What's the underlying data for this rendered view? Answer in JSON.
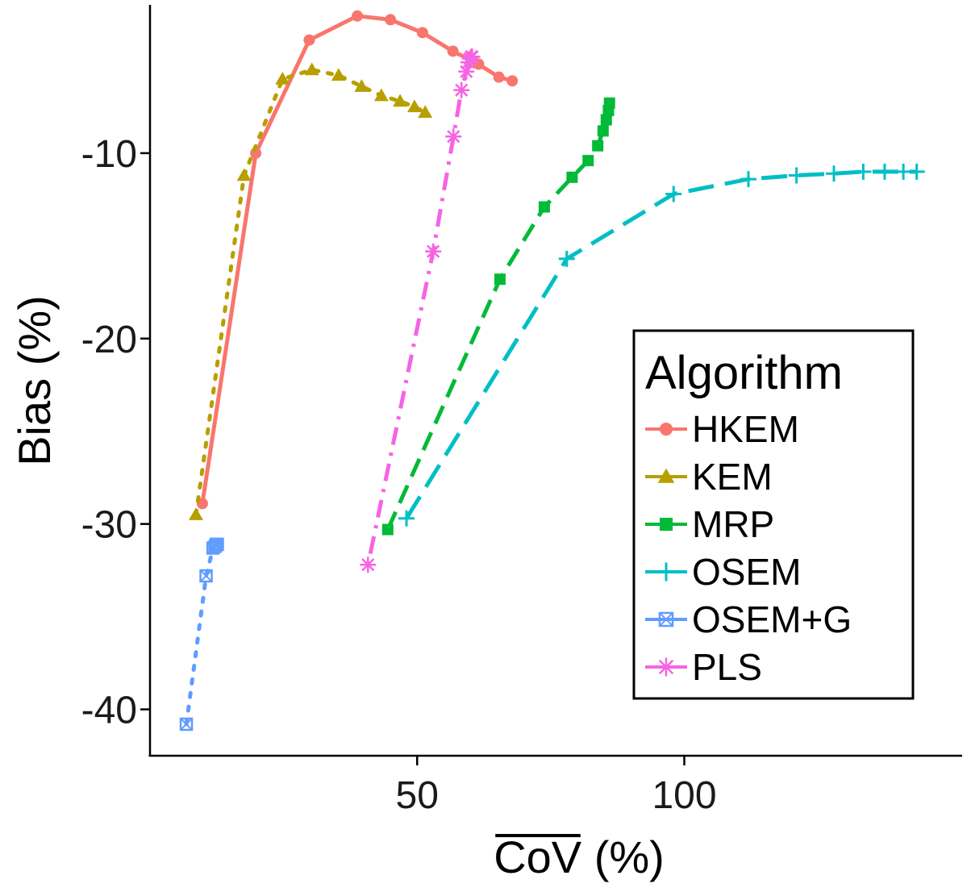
{
  "chart_data": {
    "type": "line",
    "xlabel": "CoV (%)",
    "xlabel_overline_part": "CoV",
    "xlabel_suffix": " (%)",
    "ylabel": "Bias (%)",
    "xlim": [
      0,
      152
    ],
    "ylim": [
      -42.5,
      -2
    ],
    "xticks": [
      50,
      100
    ],
    "yticks": [
      -10,
      -20,
      -30,
      -40
    ],
    "legend": {
      "title": "Algorithm",
      "position": "right"
    },
    "series": [
      {
        "name": "HKEM",
        "color": "#F8766D",
        "dash": "solid",
        "marker": "circle",
        "x": [
          9.8,
          19.8,
          29.8,
          38.8,
          45,
          51,
          56.7,
          61.5,
          65.3,
          67.8
        ],
        "y": [
          -28.9,
          -10,
          -3.9,
          -2.6,
          -2.8,
          -3.5,
          -4.5,
          -5.2,
          -5.9,
          -6.1
        ]
      },
      {
        "name": "KEM",
        "color": "#B79F00",
        "dash": "dotted",
        "marker": "triangle",
        "x": [
          8.6,
          17.6,
          24.8,
          30.3,
          35.3,
          39.6,
          43.3,
          46.8,
          49.5,
          51.5
        ],
        "y": [
          -29.5,
          -11.2,
          -6,
          -5.5,
          -5.8,
          -6.4,
          -6.9,
          -7.2,
          -7.5,
          -7.8
        ]
      },
      {
        "name": "MRP",
        "color": "#00BA38",
        "dash": "dashed",
        "marker": "square",
        "x": [
          44.5,
          65.5,
          73.8,
          79,
          82,
          83.8,
          84.8,
          85.4,
          85.8,
          86
        ],
        "y": [
          -30.3,
          -16.8,
          -12.9,
          -11.3,
          -10.4,
          -9.6,
          -8.8,
          -8.2,
          -7.7,
          -7.3
        ]
      },
      {
        "name": "OSEM",
        "color": "#00BFC4",
        "dash": "longdash",
        "marker": "plus",
        "x": [
          48,
          78,
          98,
          112,
          121,
          128,
          133.5,
          137.5,
          141,
          143.5
        ],
        "y": [
          -29.7,
          -15.7,
          -12.2,
          -11.4,
          -11.2,
          -11.1,
          -11,
          -11,
          -11,
          -11
        ]
      },
      {
        "name": "OSEM+G",
        "color": "#619CFF",
        "dash": "dotted",
        "marker": "boxx",
        "x": [
          6.8,
          10.5,
          11.8,
          12.2,
          12.4,
          12.5,
          12.6
        ],
        "y": [
          -40.8,
          -32.8,
          -31.3,
          -31.2,
          -31.1,
          -31.1,
          -31.1
        ]
      },
      {
        "name": "PLS",
        "color": "#F564E3",
        "dash": "dotdash",
        "marker": "asterisk",
        "x": [
          40.8,
          53,
          56.8,
          58.3,
          59.2,
          59.6,
          59.9,
          60.1,
          60.2,
          60.3
        ],
        "y": [
          -32.2,
          -15.3,
          -9.1,
          -6.6,
          -5.6,
          -5.1,
          -4.9,
          -4.8,
          -4.8,
          -4.8
        ]
      }
    ]
  }
}
